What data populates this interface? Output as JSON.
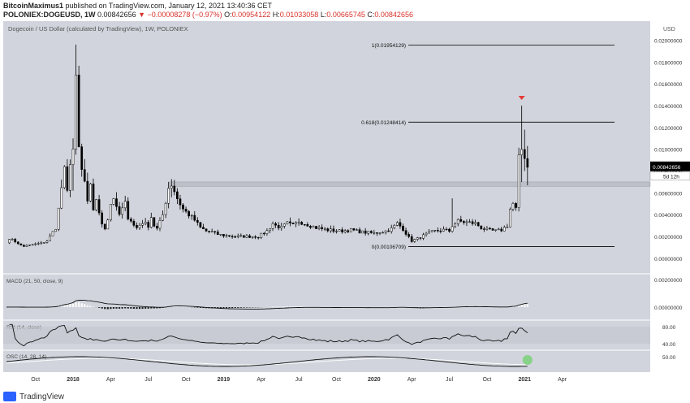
{
  "header": {
    "publisher": "BitcoinMaximus1",
    "published_text": "published on TradingView.com, January 12, 2021 13:40:36 CET",
    "symbol": "POLONIEX:DOGEUSD, 1W",
    "last": "0.00842656",
    "change": "−0.00008278 (−0.97%)",
    "o_label": "O:",
    "o": "0.00954122",
    "h_label": "H:",
    "h": "0.01033058",
    "l_label": "L:",
    "l": "0.00665745",
    "c_label": "C:",
    "c": "0.00842656"
  },
  "colors": {
    "panel_bg": "#d1d4dc",
    "up": "#ffffff",
    "down": "#000000",
    "accent_red": "#e53935",
    "price_tag": "#000000",
    "rsi_band": "#c5c8d0",
    "green_dot": "#7ed07e"
  },
  "footer": {
    "brand": "TradingView"
  },
  "chart_data": {
    "type": "candlestick",
    "title": "Dogecoin / US Dollar (calculated by TradingView), 1W, POLONIEX",
    "currency": "USD",
    "y_ticks": [
      "0.00000000",
      "0.00200000",
      "0.00400000",
      "0.00600000",
      "0.00800000",
      "0.01000000",
      "0.01200000",
      "0.01400000",
      "0.01600000",
      "0.01800000",
      "0.02000000"
    ],
    "ylim": [
      -0.0012,
      0.0213
    ],
    "current_price": "0.00842656",
    "countdown": "5d 12h",
    "x_labels": [
      "Oct",
      "2018",
      "Apr",
      "Jul",
      "Oct",
      "2019",
      "Apr",
      "Jul",
      "Oct",
      "2020",
      "Apr",
      "Jul",
      "Oct",
      "2021",
      "Apr"
    ],
    "x_label_weeks": [
      -13,
      0,
      13,
      26,
      39,
      52,
      65,
      78,
      91,
      104,
      117,
      130,
      143,
      156,
      169
    ],
    "week_range": [
      -23,
      198
    ],
    "fib_levels": [
      {
        "label": "1(0.01954129)",
        "value": 0.01954129
      },
      {
        "label": "0.618(0.01248414)",
        "value": 0.01248414
      },
      {
        "label": "0(0.00106709)",
        "value": 0.00106709
      }
    ],
    "resistance_zone": [
      0.0066,
      0.007
    ],
    "macd": {
      "label": "MACD (21, 50, close, 9)",
      "y_ticks": [
        "0.00200000",
        "0.00000000"
      ]
    },
    "rsi": {
      "label": "RSI (14, close)",
      "y_ticks": [
        "80.00",
        "40.00"
      ]
    },
    "osc": {
      "label": "OSC (14, 28, 14)",
      "y_ticks": [
        "50.00"
      ]
    },
    "anchors": [
      [
        -23,
        0.0015
      ],
      [
        -21,
        0.0018
      ],
      [
        -19,
        0.0013
      ],
      [
        -17,
        0.0011
      ],
      [
        -15,
        0.0012
      ],
      [
        -13,
        0.0013
      ],
      [
        -11,
        0.0014
      ],
      [
        -9,
        0.0016
      ],
      [
        -8,
        0.002
      ],
      [
        -6,
        0.0028
      ],
      [
        -5,
        0.0045
      ],
      [
        -4,
        0.0065
      ],
      [
        -3,
        0.008
      ],
      [
        -2,
        0.006
      ],
      [
        -1,
        0.009
      ],
      [
        0,
        0.01
      ],
      [
        1,
        0.016
      ],
      [
        2,
        0.01
      ],
      [
        3,
        0.008
      ],
      [
        4,
        0.007
      ],
      [
        5,
        0.005
      ],
      [
        6,
        0.0065
      ],
      [
        7,
        0.0045
      ],
      [
        8,
        0.0055
      ],
      [
        9,
        0.004
      ],
      [
        10,
        0.0032
      ],
      [
        11,
        0.0028
      ],
      [
        12,
        0.0036
      ],
      [
        13,
        0.005
      ],
      [
        14,
        0.0056
      ],
      [
        15,
        0.0045
      ],
      [
        16,
        0.004
      ],
      [
        18,
        0.005
      ],
      [
        19,
        0.0038
      ],
      [
        20,
        0.0035
      ],
      [
        21,
        0.003
      ],
      [
        22,
        0.0028
      ],
      [
        24,
        0.0033
      ],
      [
        26,
        0.003
      ],
      [
        27,
        0.0038
      ],
      [
        28,
        0.003
      ],
      [
        29,
        0.0027
      ],
      [
        30,
        0.0033
      ],
      [
        31,
        0.004
      ],
      [
        33,
        0.0065
      ],
      [
        34,
        0.0068
      ],
      [
        35,
        0.0062
      ],
      [
        36,
        0.0055
      ],
      [
        37,
        0.005
      ],
      [
        38,
        0.0045
      ],
      [
        40,
        0.004
      ],
      [
        42,
        0.0035
      ],
      [
        44,
        0.0028
      ],
      [
        46,
        0.0025
      ],
      [
        48,
        0.0024
      ],
      [
        50,
        0.0022
      ],
      [
        52,
        0.0021
      ],
      [
        56,
        0.002
      ],
      [
        60,
        0.002
      ],
      [
        64,
        0.002
      ],
      [
        67,
        0.0025
      ],
      [
        69,
        0.0032
      ],
      [
        70,
        0.003
      ],
      [
        72,
        0.0028
      ],
      [
        74,
        0.0032
      ],
      [
        76,
        0.003
      ],
      [
        78,
        0.0034
      ],
      [
        80,
        0.0032
      ],
      [
        82,
        0.003
      ],
      [
        84,
        0.0028
      ],
      [
        88,
        0.0026
      ],
      [
        92,
        0.0025
      ],
      [
        96,
        0.0026
      ],
      [
        100,
        0.0024
      ],
      [
        104,
        0.0023
      ],
      [
        108,
        0.0025
      ],
      [
        110,
        0.0027
      ],
      [
        112,
        0.0032
      ],
      [
        114,
        0.0027
      ],
      [
        116,
        0.0019
      ],
      [
        117,
        0.0016
      ],
      [
        119,
        0.0018
      ],
      [
        122,
        0.0022
      ],
      [
        125,
        0.0025
      ],
      [
        128,
        0.0026
      ],
      [
        130,
        0.0025
      ],
      [
        131,
        0.003
      ],
      [
        133,
        0.0034
      ],
      [
        136,
        0.0033
      ],
      [
        139,
        0.0032
      ],
      [
        141,
        0.0028
      ],
      [
        143,
        0.0026
      ],
      [
        146,
        0.0025
      ],
      [
        148,
        0.0026
      ],
      [
        150,
        0.003
      ],
      [
        151,
        0.0045
      ],
      [
        152,
        0.005
      ],
      [
        153,
        0.0045
      ],
      [
        154,
        0.009
      ],
      [
        155,
        0.01
      ],
      [
        156,
        0.0095
      ],
      [
        157,
        0.0084
      ]
    ]
  }
}
